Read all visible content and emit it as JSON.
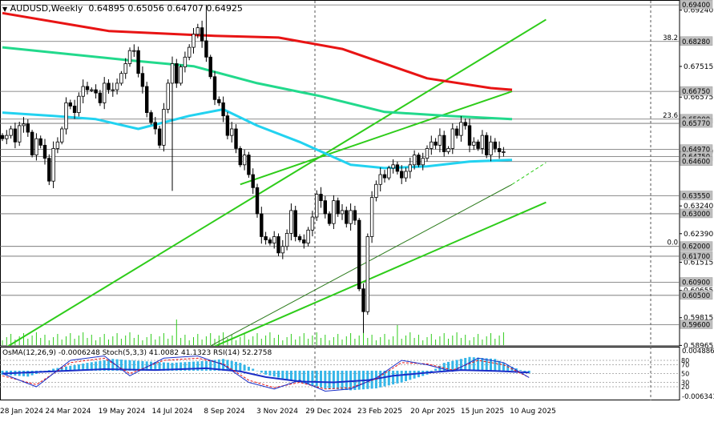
{
  "window": {
    "symbol_line": "AUDUSD,Weekly",
    "ohlc": [
      "0.64895",
      "0.65056",
      "0.64707",
      "0.64925"
    ]
  },
  "colors": {
    "background": "#ffffff",
    "candle": "#000000",
    "ma_slow": "#e81414",
    "ma_mid": "#22d98c",
    "ma_fast": "#22d2f0",
    "channel": "#2ecc1a",
    "osma": "#35b6e8",
    "stoch_main": "#1a2ec8",
    "stoch_signal": "#e81414",
    "rsi": "#1a2ec8"
  },
  "chart_data": [
    {
      "type": "candlestick",
      "title": "AUDUSD,Weekly",
      "ylim": [
        0.5895,
        0.6955
      ],
      "price_axis_ticks": [
        "0.69240",
        "0.67515",
        "0.66575",
        "0.64910",
        "0.63240",
        "0.62390",
        "0.61515",
        "0.60655",
        "0.59815",
        "0.58965"
      ],
      "price_axis_tags": [
        "0.69400",
        "0.68280",
        "0.66750",
        "0.65900",
        "0.65770",
        "0.64970",
        "0.64750",
        "0.64600",
        "0.63550",
        "0.63000",
        "0.62000",
        "0.61700",
        "0.60900",
        "0.60500",
        "0.59600"
      ],
      "horizontal_levels": [
        0.694,
        0.6828,
        0.6675,
        0.659,
        0.6577,
        0.6497,
        0.6475,
        0.646,
        0.6355,
        0.63,
        0.62,
        0.617,
        0.609,
        0.605,
        0.596
      ],
      "fib_labels": [
        {
          "text": "38.2",
          "price": 0.6828
        },
        {
          "text": "23.6",
          "price": 0.659
        },
        {
          "text": "0.0",
          "price": 0.62
        }
      ],
      "x_axis_labels": [
        "28 Jan 2024",
        "24 Mar 2024",
        "19 May 2024",
        "14 Jul 2024",
        "8 Sep 2024",
        "3 Nov 2024",
        "29 Dec 2024",
        "23 Feb 2025",
        "20 Apr 2025",
        "15 Jun 2025",
        "10 Aug 2025"
      ],
      "closes": [
        0.653,
        0.654,
        0.656,
        0.652,
        0.657,
        0.6575,
        0.655,
        0.648,
        0.653,
        0.651,
        0.647,
        0.64,
        0.65,
        0.652,
        0.656,
        0.664,
        0.663,
        0.661,
        0.666,
        0.669,
        0.668,
        0.668,
        0.667,
        0.664,
        0.67,
        0.668,
        0.668,
        0.67,
        0.673,
        0.676,
        0.68,
        0.68,
        0.673,
        0.669,
        0.661,
        0.658,
        0.656,
        0.651,
        0.662,
        0.67,
        0.676,
        0.67,
        0.675,
        0.678,
        0.681,
        0.685,
        0.687,
        0.683,
        0.678,
        0.672,
        0.665,
        0.664,
        0.66,
        0.654,
        0.656,
        0.65,
        0.645,
        0.648,
        0.642,
        0.638,
        0.63,
        0.623,
        0.622,
        0.621,
        0.623,
        0.618,
        0.62,
        0.624,
        0.631,
        0.623,
        0.622,
        0.621,
        0.625,
        0.629,
        0.636,
        0.634,
        0.63,
        0.627,
        0.634,
        0.63,
        0.631,
        0.627,
        0.631,
        0.628,
        0.607,
        0.6,
        0.623,
        0.635,
        0.639,
        0.642,
        0.641,
        0.644,
        0.645,
        0.643,
        0.641,
        0.643,
        0.645,
        0.648,
        0.645,
        0.647,
        0.65,
        0.652,
        0.651,
        0.654,
        0.649,
        0.65,
        0.656,
        0.654,
        0.658,
        0.657,
        0.651,
        0.652,
        0.65,
        0.654,
        0.648,
        0.652,
        0.65,
        0.649,
        0.649
      ],
      "moving_averages": [
        {
          "role": "slow",
          "color": "#e81414",
          "points": [
            [
              0,
              0.6915
            ],
            [
              25,
              0.686
            ],
            [
              50,
              0.6845
            ],
            [
              65,
              0.684
            ],
            [
              80,
              0.6805
            ],
            [
              100,
              0.6715
            ],
            [
              115,
              0.6685
            ],
            [
              120,
              0.668
            ]
          ]
        },
        {
          "role": "mid",
          "color": "#22d98c",
          "points": [
            [
              0,
              0.681
            ],
            [
              15,
              0.679
            ],
            [
              30,
              0.677
            ],
            [
              45,
              0.6752
            ],
            [
              60,
              0.67
            ],
            [
              75,
              0.666
            ],
            [
              90,
              0.6612
            ],
            [
              105,
              0.66
            ],
            [
              120,
              0.659
            ]
          ]
        },
        {
          "role": "fast",
          "color": "#22d2f0",
          "points": [
            [
              0,
              0.661
            ],
            [
              12,
              0.66
            ],
            [
              22,
              0.659
            ],
            [
              32,
              0.656
            ],
            [
              44,
              0.66
            ],
            [
              52,
              0.662
            ],
            [
              60,
              0.657
            ],
            [
              70,
              0.652
            ],
            [
              82,
              0.645
            ],
            [
              90,
              0.644
            ],
            [
              100,
              0.6445
            ],
            [
              110,
              0.646
            ],
            [
              120,
              0.6465
            ]
          ]
        }
      ],
      "channel_lines": [
        {
          "style": "solid",
          "points": [
            [
              -3,
              0.586
            ],
            [
              128,
              0.6895
            ]
          ]
        },
        {
          "style": "solid",
          "points": [
            [
              44,
              0.586
            ],
            [
              128,
              0.6335
            ]
          ]
        },
        {
          "style": "solid",
          "points": [
            [
              56,
              0.639
            ],
            [
              120,
              0.6675
            ]
          ]
        },
        {
          "style": "thin",
          "points": [
            [
              44,
              0.586
            ],
            [
              120,
              0.639
            ]
          ]
        },
        {
          "style": "dashed",
          "points": [
            [
              120,
              0.639
            ],
            [
              128,
              0.6457
            ]
          ]
        }
      ]
    },
    {
      "type": "oscillator",
      "title": "OsMA(12,26,9) -0.0006248 Stoch(5,3,3) 41.0082 41.1323 RSI(14) 52.2758",
      "ylim": [
        -0.006341,
        0.004886
      ],
      "axis_labels": [
        "0.004886",
        "-0.006341"
      ],
      "level_labels": [
        "80",
        "70",
        "50",
        "30",
        "20"
      ],
      "osma_points": [
        [
          0,
          -0.001
        ],
        [
          6,
          -0.0015
        ],
        [
          12,
          0.0005
        ],
        [
          20,
          0.002
        ],
        [
          26,
          0.003
        ],
        [
          32,
          0.0025
        ],
        [
          40,
          0.002
        ],
        [
          48,
          0.0025
        ],
        [
          52,
          0.003
        ],
        [
          56,
          0.002
        ],
        [
          62,
          -0.001
        ],
        [
          70,
          -0.003
        ],
        [
          76,
          -0.0045
        ],
        [
          82,
          -0.005
        ],
        [
          88,
          -0.0045
        ],
        [
          94,
          -0.003
        ],
        [
          100,
          -0.001
        ],
        [
          104,
          0.002
        ],
        [
          110,
          0.0035
        ],
        [
          116,
          0.003
        ],
        [
          120,
          0.001
        ],
        [
          124,
          -0.0006248
        ]
      ],
      "stoch_main_points": [
        [
          0,
          50
        ],
        [
          8,
          20
        ],
        [
          16,
          80
        ],
        [
          24,
          90
        ],
        [
          30,
          45
        ],
        [
          38,
          85
        ],
        [
          46,
          90
        ],
        [
          52,
          70
        ],
        [
          58,
          30
        ],
        [
          64,
          15
        ],
        [
          70,
          35
        ],
        [
          76,
          10
        ],
        [
          82,
          15
        ],
        [
          88,
          40
        ],
        [
          94,
          80
        ],
        [
          100,
          70
        ],
        [
          106,
          55
        ],
        [
          112,
          85
        ],
        [
          118,
          75
        ],
        [
          124,
          41.0082
        ]
      ],
      "stoch_signal_points": [
        [
          0,
          45
        ],
        [
          8,
          25
        ],
        [
          16,
          75
        ],
        [
          24,
          85
        ],
        [
          30,
          50
        ],
        [
          38,
          80
        ],
        [
          46,
          85
        ],
        [
          52,
          72
        ],
        [
          58,
          35
        ],
        [
          64,
          18
        ],
        [
          70,
          30
        ],
        [
          76,
          15
        ],
        [
          82,
          18
        ],
        [
          88,
          38
        ],
        [
          94,
          75
        ],
        [
          100,
          72
        ],
        [
          106,
          58
        ],
        [
          112,
          80
        ],
        [
          118,
          70
        ],
        [
          124,
          41.1323
        ]
      ],
      "rsi_points": [
        [
          0,
          50
        ],
        [
          12,
          55
        ],
        [
          24,
          60
        ],
        [
          36,
          58
        ],
        [
          48,
          62
        ],
        [
          56,
          55
        ],
        [
          62,
          42
        ],
        [
          70,
          32
        ],
        [
          78,
          30
        ],
        [
          86,
          35
        ],
        [
          92,
          45
        ],
        [
          100,
          52
        ],
        [
          108,
          58
        ],
        [
          116,
          56
        ],
        [
          124,
          52.2758
        ]
      ]
    }
  ]
}
